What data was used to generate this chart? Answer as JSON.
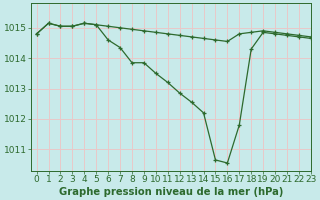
{
  "title": "Graphe pression niveau de la mer (hPa)",
  "background_color": "#c8eaea",
  "grid_color": "#e8c8c8",
  "line_color": "#2d6a2d",
  "xlim": [
    -0.5,
    23
  ],
  "ylim": [
    1010.3,
    1015.8
  ],
  "yticks": [
    1011,
    1012,
    1013,
    1014,
    1015
  ],
  "xticks": [
    0,
    1,
    2,
    3,
    4,
    5,
    6,
    7,
    8,
    9,
    10,
    11,
    12,
    13,
    14,
    15,
    16,
    17,
    18,
    19,
    20,
    21,
    22,
    23
  ],
  "series1_x": [
    0,
    1,
    2,
    3,
    4,
    5,
    6,
    7,
    8,
    9,
    10,
    11,
    12,
    13,
    14,
    15,
    16,
    17,
    18,
    19,
    20,
    21,
    22,
    23
  ],
  "series1_y": [
    1014.8,
    1015.15,
    1015.05,
    1015.05,
    1015.15,
    1015.1,
    1015.05,
    1015.0,
    1014.95,
    1014.9,
    1014.85,
    1014.8,
    1014.75,
    1014.7,
    1014.65,
    1014.6,
    1014.55,
    1014.8,
    1014.85,
    1014.9,
    1014.85,
    1014.8,
    1014.75,
    1014.7
  ],
  "series2_x": [
    0,
    1,
    2,
    3,
    4,
    5,
    6,
    7,
    8,
    9,
    10,
    11,
    12,
    13,
    14,
    15,
    16,
    17,
    18,
    19,
    20,
    21,
    22,
    23
  ],
  "series2_y": [
    1014.8,
    1015.15,
    1015.05,
    1015.05,
    1015.15,
    1015.1,
    1014.6,
    1014.35,
    1013.85,
    1013.85,
    1013.5,
    1013.2,
    1012.85,
    1012.55,
    1012.2,
    1010.65,
    1010.55,
    1011.8,
    1014.3,
    1014.85,
    1014.8,
    1014.75,
    1014.7,
    1014.65
  ],
  "tick_fontsize": 6.5,
  "title_fontsize": 7.2,
  "marker_size": 3.5,
  "line_width": 0.9
}
